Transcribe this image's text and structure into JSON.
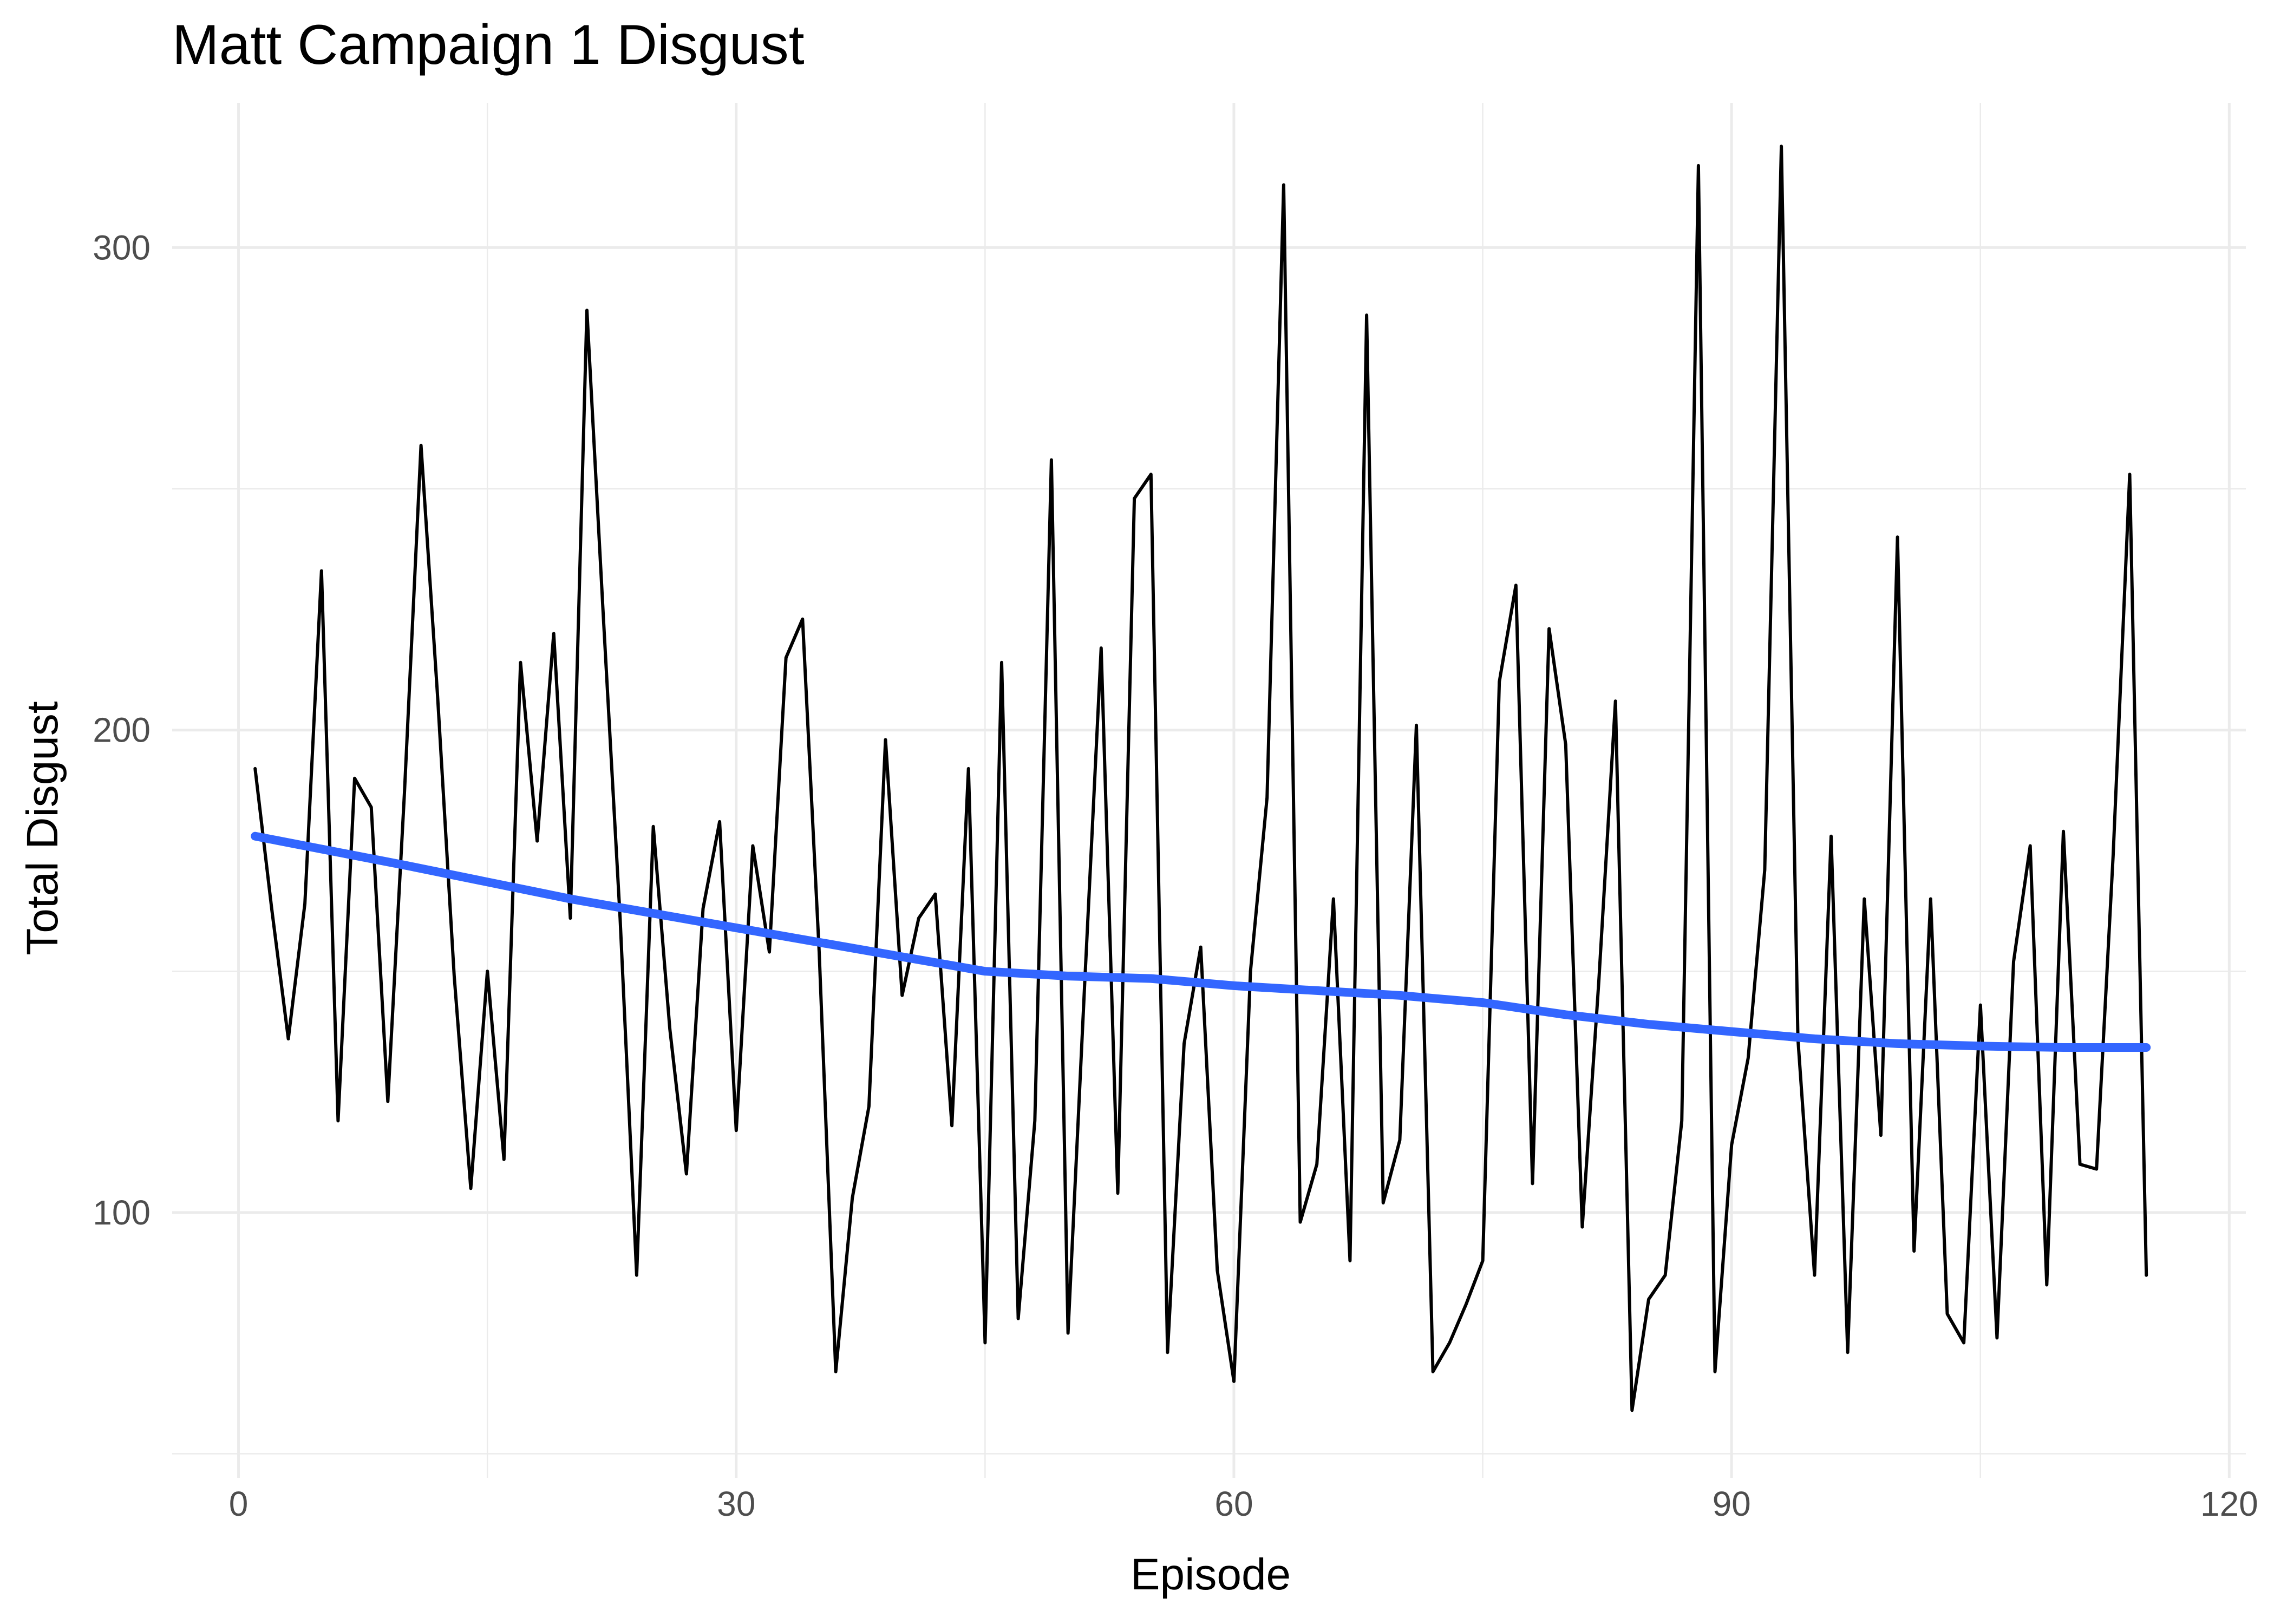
{
  "chart_data": {
    "type": "line",
    "title": "Matt Campaign 1 Disgust",
    "xlabel": "Episode",
    "ylabel": "Total Disgust",
    "xlim": [
      -4,
      121
    ],
    "ylim": [
      45,
      330
    ],
    "x_ticks": [
      0,
      30,
      60,
      90,
      120
    ],
    "x_minor_ticks": [
      15,
      45,
      75,
      105
    ],
    "y_ticks": [
      100,
      200,
      300
    ],
    "y_minor_ticks": [
      50,
      150,
      250
    ],
    "grid": true,
    "legend": "none",
    "series": [
      {
        "style": "raw",
        "color": "#000000",
        "x": [
          1,
          2,
          3,
          4,
          5,
          6,
          7,
          8,
          9,
          10,
          11,
          12,
          13,
          14,
          15,
          16,
          17,
          18,
          19,
          20,
          21,
          22,
          23,
          24,
          25,
          26,
          27,
          28,
          29,
          30,
          31,
          32,
          33,
          34,
          35,
          36,
          37,
          38,
          39,
          40,
          41,
          42,
          43,
          44,
          45,
          46,
          47,
          48,
          49,
          50,
          51,
          52,
          53,
          54,
          55,
          56,
          57,
          58,
          59,
          60,
          61,
          62,
          63,
          64,
          65,
          66,
          67,
          68,
          69,
          70,
          71,
          72,
          73,
          74,
          75,
          76,
          77,
          78,
          79,
          80,
          81,
          82,
          83,
          84,
          85,
          86,
          87,
          88,
          89,
          90,
          91,
          92,
          93,
          94,
          95,
          96,
          97,
          98,
          99,
          100,
          101,
          102,
          103,
          104,
          105,
          106,
          107,
          108,
          109,
          110,
          111,
          112,
          113,
          114,
          115
        ],
        "y": [
          192,
          163,
          136,
          164,
          233,
          119,
          190,
          184,
          123,
          187,
          259,
          207,
          149,
          105,
          150,
          111,
          214,
          177,
          220,
          161,
          287,
          223,
          161,
          87,
          180,
          138,
          108,
          163,
          181,
          117,
          176,
          154,
          215,
          223,
          154,
          67,
          103,
          122,
          198,
          145,
          161,
          166,
          118,
          192,
          73,
          214,
          78,
          119,
          256,
          75,
          147,
          217,
          104,
          248,
          253,
          71,
          135,
          155,
          88,
          65,
          150,
          186,
          313,
          98,
          110,
          165,
          90,
          286,
          102,
          115,
          201,
          67,
          73,
          81,
          90,
          210,
          230,
          106,
          221,
          197,
          97,
          148,
          206,
          59,
          82,
          87,
          119,
          317,
          67,
          114,
          132,
          171,
          321,
          136,
          87,
          178,
          71,
          165,
          116,
          240,
          92,
          165,
          79,
          73,
          143,
          74,
          152,
          176,
          85,
          179,
          110,
          109,
          174,
          253,
          87
        ]
      },
      {
        "style": "smooth",
        "color": "#3366ff",
        "x": [
          1,
          10,
          20,
          30,
          40,
          45,
          50,
          55,
          60,
          65,
          70,
          75,
          80,
          85,
          90,
          95,
          100,
          105,
          110,
          115
        ],
        "y": [
          178,
          172,
          165,
          159,
          153,
          150,
          149,
          148.5,
          147,
          146,
          145,
          143.5,
          141,
          139,
          137.5,
          136,
          135,
          134.5,
          134.2,
          134.2
        ]
      }
    ]
  }
}
